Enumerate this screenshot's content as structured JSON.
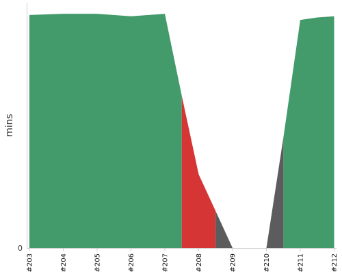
{
  "chart_data": {
    "type": "area",
    "ylabel": "mins",
    "y_tick_labels": [
      "0"
    ],
    "ylim": [
      0,
      100
    ],
    "categories": [
      "#203",
      "#204",
      "#205",
      "#206",
      "#207",
      "#208",
      "#209",
      "#210",
      "#211",
      "#212"
    ],
    "series": [
      {
        "key": "success",
        "color": "#439b6c",
        "points": [
          {
            "x": 0,
            "y": 95
          },
          {
            "x": 1,
            "y": 95.5
          },
          {
            "x": 2,
            "y": 95.5
          },
          {
            "x": 3,
            "y": 94.5
          },
          {
            "x": 4,
            "y": 95.5
          },
          {
            "x": 4.5,
            "y": 62
          },
          {
            "x": 4.5,
            "y": 0
          },
          {
            "x": 7.5,
            "y": 0
          },
          {
            "x": 7.5,
            "y": 45
          },
          {
            "x": 8,
            "y": 93
          },
          {
            "x": 8.5,
            "y": 94
          },
          {
            "x": 9,
            "y": 94.5
          }
        ]
      },
      {
        "key": "failed",
        "color": "#d63535",
        "points": [
          {
            "x": 4.5,
            "y": 62
          },
          {
            "x": 5,
            "y": 30
          },
          {
            "x": 5.5,
            "y": 15
          },
          {
            "x": 5.5,
            "y": 0
          },
          {
            "x": 4.5,
            "y": 0
          }
        ]
      },
      {
        "key": "aborted",
        "color": "#5c5c5c",
        "points_a": [
          {
            "x": 5.5,
            "y": 15
          },
          {
            "x": 6,
            "y": 0
          },
          {
            "x": 5.5,
            "y": 0
          }
        ],
        "points_b": [
          {
            "x": 7,
            "y": 0
          },
          {
            "x": 7.5,
            "y": 45
          },
          {
            "x": 7.5,
            "y": 0
          }
        ]
      }
    ]
  }
}
